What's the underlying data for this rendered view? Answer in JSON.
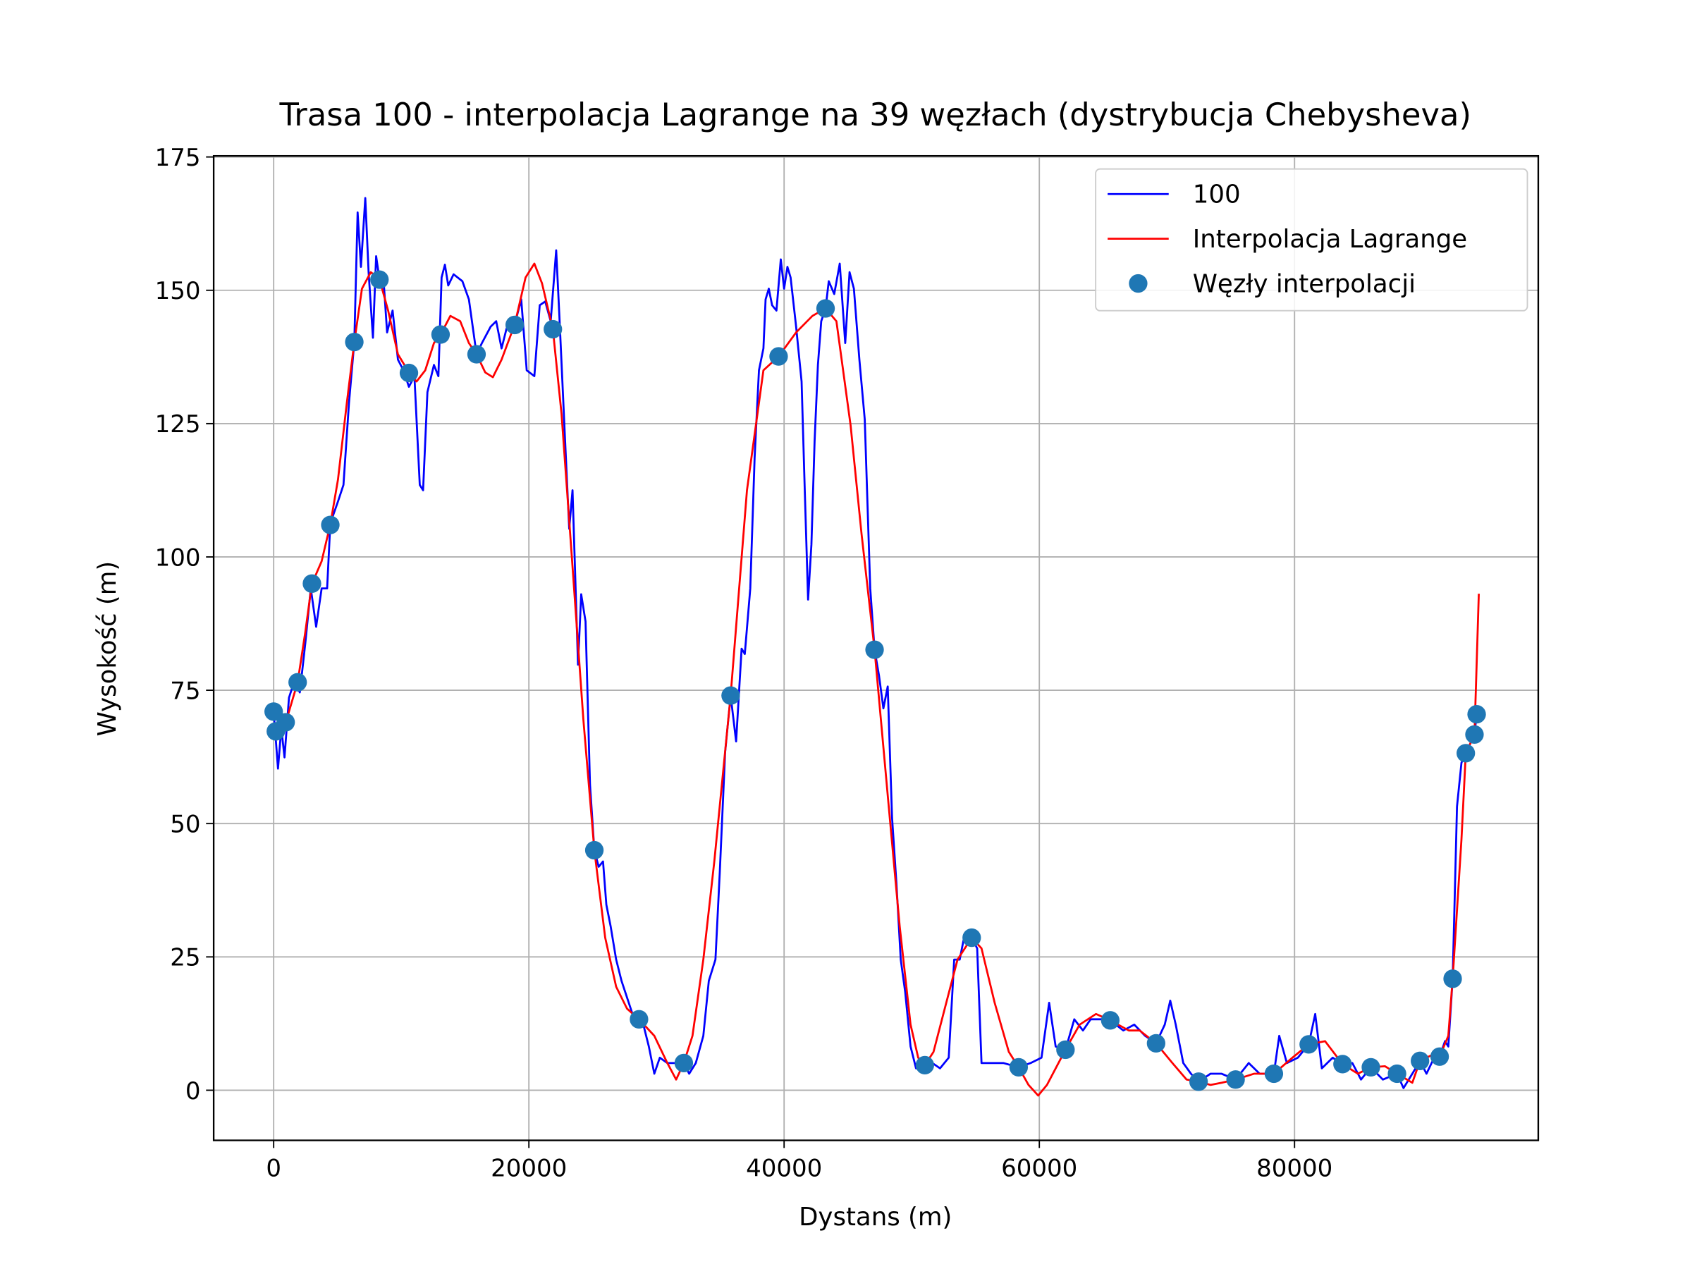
{
  "chart_data": {
    "type": "line",
    "title": "Trasa 100 - interpolacja Lagrange na 39 węzłach (dystrybucja Chebysheva)",
    "x_label": "Dystans (m)",
    "y_label": "Wysokość (m)",
    "xlim": [
      -4700,
      99100
    ],
    "ylim": [
      -9.4,
      175.2
    ],
    "xticks": [
      0,
      20000,
      40000,
      60000,
      80000
    ],
    "yticks": [
      0,
      25,
      50,
      75,
      100,
      125,
      150,
      175
    ],
    "grid": true,
    "legend": "upper right",
    "series": [
      {
        "name": "100",
        "type": "line",
        "color": "#0000ff",
        "x": [
          0,
          340,
          600,
          850,
          1200,
          1620,
          2050,
          2480,
          2910,
          3330,
          3760,
          4190,
          4440,
          5040,
          5470,
          5900,
          6320,
          6580,
          6840,
          7180,
          7440,
          7780,
          8030,
          8290,
          8630,
          8890,
          9320,
          9740,
          10170,
          10600,
          11030,
          11450,
          11710,
          12050,
          12560,
          12910,
          13160,
          13420,
          13680,
          14100,
          14790,
          15300,
          15900,
          16320,
          17010,
          17440,
          17860,
          18290,
          18890,
          19400,
          19830,
          20430,
          20850,
          21280,
          21710,
          22140,
          22390,
          22820,
          23160,
          23420,
          23850,
          24100,
          24440,
          24790,
          25130,
          25470,
          25810,
          26070,
          26410,
          26840,
          27260,
          27690,
          28120,
          28630,
          28970,
          29400,
          29830,
          30260,
          30850,
          31540,
          32140,
          32560,
          33080,
          33670,
          34100,
          34620,
          34960,
          35380,
          35810,
          36240,
          36670,
          36920,
          37350,
          37690,
          38030,
          38380,
          38550,
          38800,
          39060,
          39400,
          39740,
          40000,
          40260,
          40510,
          40940,
          41370,
          41620,
          41880,
          42140,
          42390,
          42650,
          42910,
          43250,
          43500,
          43930,
          44360,
          44790,
          45130,
          45470,
          45900,
          46320,
          46750,
          47090,
          47440,
          47780,
          48120,
          48460,
          48800,
          49140,
          49490,
          49910,
          50340,
          51030,
          51620,
          52220,
          52900,
          53330,
          53760,
          54100,
          54700,
          55130,
          55470,
          56320,
          57180,
          58380,
          59320,
          60170,
          60770,
          61280,
          62050,
          62740,
          63420,
          64020,
          64870,
          65560,
          66580,
          67440,
          68290,
          69150,
          69830,
          70260,
          70690,
          71280,
          71880,
          72480,
          73420,
          74270,
          75380,
          76410,
          77260,
          78380,
          78800,
          79400,
          80260,
          81110,
          81620,
          82140,
          82990,
          83760,
          84530,
          85210,
          85980,
          86920,
          88030,
          88540,
          89230,
          89830,
          90340,
          90940,
          91370,
          91790,
          92050,
          92390,
          92730,
          93080,
          93420,
          94100,
          94270
        ],
        "values": [
          71.0,
          60.3,
          67.9,
          62.4,
          73.6,
          76.7,
          74.6,
          83.8,
          94.1,
          86.9,
          94.1,
          94.1,
          106.3,
          110.4,
          113.5,
          128.8,
          140.3,
          164.6,
          154.4,
          167.3,
          153.4,
          141.1,
          156.4,
          152.1,
          151.3,
          142.1,
          146.2,
          137.0,
          135.0,
          131.9,
          133.9,
          113.5,
          112.5,
          130.9,
          136.0,
          133.9,
          152.4,
          154.8,
          150.9,
          153.0,
          151.7,
          148.3,
          138.0,
          140.1,
          143.2,
          144.2,
          139.1,
          143.2,
          143.6,
          148.3,
          135.0,
          133.9,
          147.2,
          147.9,
          144.2,
          157.5,
          145.2,
          122.7,
          105.3,
          112.5,
          79.8,
          93.0,
          87.9,
          57.3,
          45.0,
          41.9,
          42.9,
          34.8,
          30.7,
          24.5,
          20.5,
          17.4,
          14.3,
          13.3,
          12.3,
          8.2,
          3.1,
          6.1,
          5.1,
          5.1,
          5.1,
          3.1,
          5.1,
          10.2,
          20.5,
          24.5,
          40.9,
          63.4,
          74.0,
          65.4,
          82.8,
          81.8,
          94.1,
          118.6,
          135.0,
          139.1,
          148.3,
          150.3,
          147.2,
          146.2,
          155.8,
          150.3,
          154.4,
          152.4,
          143.2,
          132.9,
          112.5,
          92.0,
          102.3,
          121.7,
          136.0,
          144.2,
          146.6,
          151.7,
          149.3,
          155.0,
          140.1,
          153.4,
          150.3,
          137.0,
          125.8,
          94.1,
          82.6,
          77.7,
          71.6,
          75.7,
          51.1,
          38.9,
          24.5,
          18.4,
          8.2,
          4.1,
          4.7,
          5.1,
          4.1,
          6.1,
          24.5,
          24.5,
          28.6,
          28.6,
          26.6,
          5.1,
          5.1,
          5.1,
          4.3,
          5.1,
          6.1,
          16.4,
          8.2,
          7.6,
          13.3,
          11.2,
          13.3,
          13.3,
          13.1,
          11.2,
          12.3,
          10.2,
          8.8,
          12.3,
          16.8,
          12.3,
          5.1,
          3.1,
          1.6,
          3.1,
          3.1,
          2.0,
          5.1,
          3.1,
          3.1,
          10.2,
          5.1,
          6.1,
          8.6,
          14.3,
          4.1,
          6.1,
          4.9,
          5.1,
          2.0,
          4.3,
          2.0,
          3.1,
          0.4,
          3.1,
          5.5,
          3.1,
          6.1,
          6.3,
          9.2,
          8.2,
          20.9,
          53.2,
          61.4,
          63.2,
          66.7,
          70.5
        ]
      },
      {
        "name": "Interpolacja Lagrange",
        "type": "line",
        "color": "#ff0000",
        "x": [
          0,
          940,
          1880,
          2480,
          2990,
          3760,
          4440,
          5040,
          5730,
          6320,
          6920,
          7610,
          8290,
          8970,
          9740,
          10600,
          11200,
          11880,
          12560,
          13080,
          13850,
          14620,
          15300,
          15900,
          16580,
          17180,
          17860,
          18890,
          19740,
          20430,
          21030,
          21880,
          22560,
          23420,
          24270,
          25130,
          25980,
          26840,
          27690,
          28630,
          29830,
          30850,
          31540,
          32140,
          32820,
          33670,
          34530,
          35810,
          37090,
          38380,
          39570,
          40940,
          42220,
          43250,
          44100,
          45210,
          46070,
          47090,
          48200,
          49060,
          49910,
          50510,
          51030,
          51710,
          52480,
          53590,
          54700,
          55470,
          56500,
          57610,
          58380,
          59150,
          59910,
          60600,
          62050,
          63160,
          64440,
          65560,
          67010,
          67860,
          69150,
          70430,
          71540,
          72480,
          73420,
          74270,
          75380,
          76840,
          78380,
          79830,
          81110,
          82390,
          83760,
          84960,
          85980,
          87090,
          88030,
          89230,
          89830,
          90680,
          91370,
          92050,
          92390,
          93080,
          93420,
          94100,
          94440
        ],
        "values": [
          71.0,
          68.9,
          76.5,
          85.9,
          94.9,
          99.2,
          106.1,
          114.5,
          128.8,
          140.3,
          150.3,
          153.4,
          152.1,
          146.2,
          138.0,
          134.6,
          132.9,
          135.0,
          140.1,
          141.7,
          145.2,
          144.2,
          140.1,
          138.0,
          134.6,
          133.7,
          137.0,
          143.6,
          152.4,
          155.0,
          151.3,
          142.7,
          126.8,
          98.2,
          69.5,
          45.0,
          28.6,
          19.4,
          15.3,
          13.3,
          10.2,
          5.1,
          2.0,
          5.1,
          10.2,
          24.5,
          42.9,
          74.0,
          112.5,
          135.0,
          137.6,
          142.1,
          145.2,
          146.6,
          144.2,
          124.7,
          104.3,
          82.6,
          53.2,
          30.7,
          12.3,
          6.1,
          4.7,
          7.2,
          14.3,
          24.5,
          28.6,
          26.6,
          16.4,
          7.2,
          4.3,
          1.0,
          -1.0,
          1.0,
          7.6,
          12.3,
          14.3,
          13.1,
          11.2,
          11.2,
          8.8,
          5.1,
          2.0,
          1.6,
          1.0,
          1.4,
          2.0,
          3.1,
          3.1,
          6.1,
          8.6,
          9.2,
          4.9,
          3.1,
          4.3,
          4.5,
          3.1,
          1.4,
          5.5,
          6.5,
          6.3,
          10.2,
          20.9,
          47.0,
          63.2,
          66.7,
          93.1
        ]
      },
      {
        "name": "Węzły interpolacji",
        "type": "scatter",
        "color": "#1f77b4",
        "x": [
          0,
          170,
          940,
          1880,
          3000,
          4440,
          6320,
          8290,
          10600,
          13080,
          15900,
          18890,
          21880,
          25130,
          28630,
          32140,
          35810,
          39570,
          43250,
          47090,
          51030,
          54700,
          58380,
          62050,
          65560,
          69150,
          72480,
          75380,
          78380,
          81110,
          83760,
          85980,
          88030,
          89830,
          91370,
          92390,
          93420,
          94100,
          94270
        ],
        "values": [
          71,
          67.3,
          69,
          76.5,
          95,
          106,
          140.3,
          152,
          134.5,
          141.7,
          138,
          143.5,
          142.7,
          45,
          13.3,
          5.1,
          74,
          137.6,
          146.6,
          82.6,
          4.7,
          28.6,
          4.3,
          7.6,
          13.1,
          8.8,
          1.6,
          2,
          3.1,
          8.6,
          4.9,
          4.3,
          3.1,
          5.5,
          6.3,
          20.9,
          63.2,
          66.7,
          70.5
        ]
      }
    ]
  }
}
